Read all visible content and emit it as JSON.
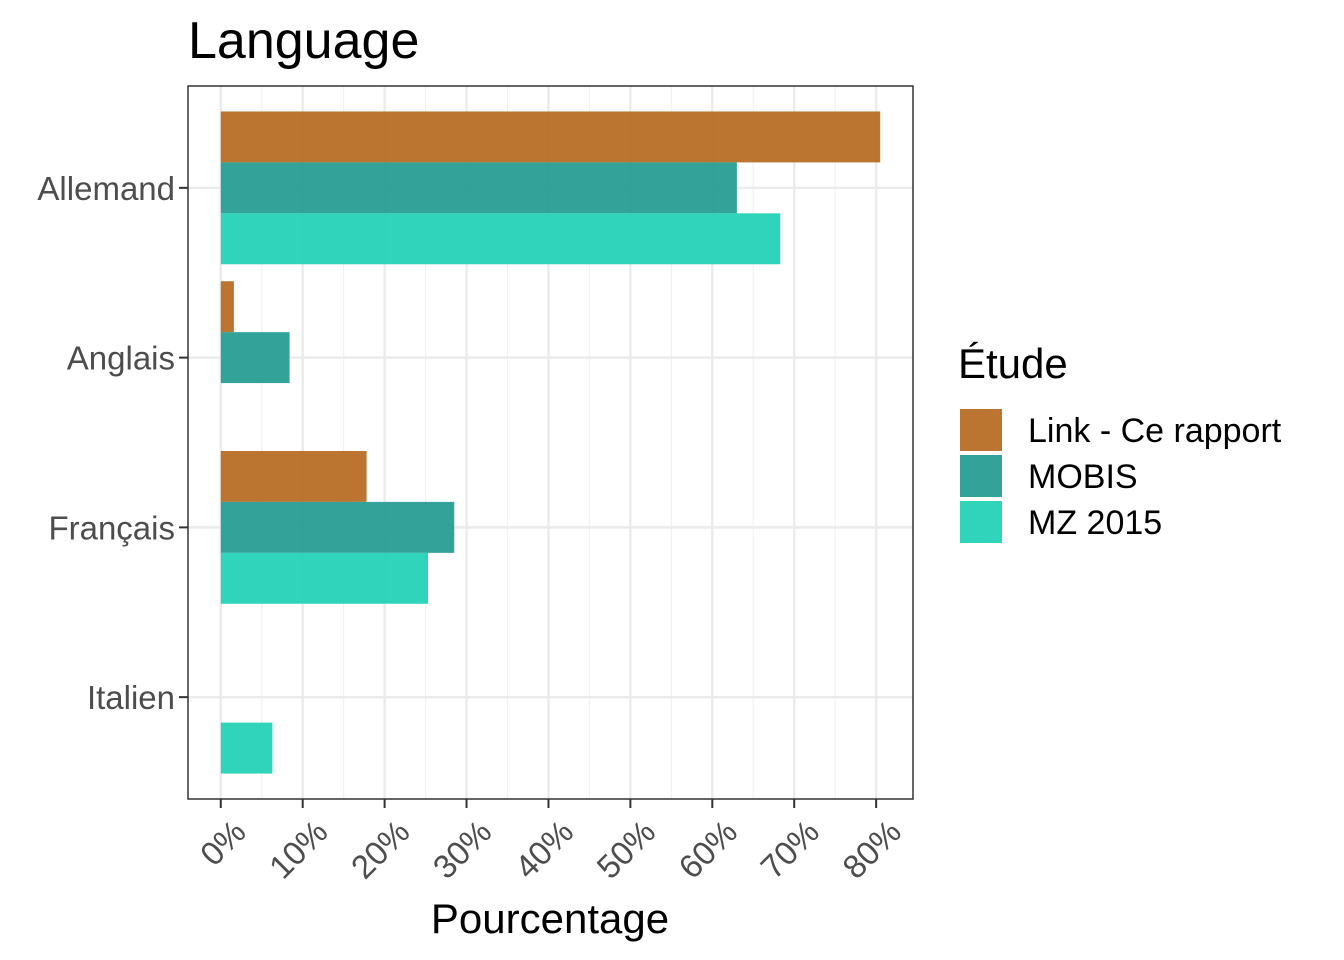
{
  "chart_data": {
    "type": "bar",
    "orientation": "horizontal",
    "title": "Language",
    "xlabel": "Pourcentage",
    "ylabel": "",
    "xlim": [
      -4,
      84.5
    ],
    "x_ticks": [
      0,
      10,
      20,
      30,
      40,
      50,
      60,
      70,
      80
    ],
    "x_tick_labels": [
      "0%",
      "10%",
      "20%",
      "30%",
      "40%",
      "50%",
      "60%",
      "70%",
      "80%"
    ],
    "categories": [
      "Allemand",
      "Anglais",
      "Français",
      "Italien"
    ],
    "series": [
      {
        "name": "Link - Ce rapport",
        "color": "#B5691F",
        "values": [
          80.5,
          1.6,
          17.8,
          null
        ]
      },
      {
        "name": "MOBIS",
        "color": "#229A8F",
        "values": [
          63.0,
          8.4,
          28.5,
          null
        ]
      },
      {
        "name": "MZ 2015",
        "color": "#1ED0B5",
        "values": [
          68.3,
          null,
          25.3,
          6.3
        ]
      }
    ],
    "legend": {
      "title": "Étude",
      "position": "right"
    },
    "grid": true
  }
}
